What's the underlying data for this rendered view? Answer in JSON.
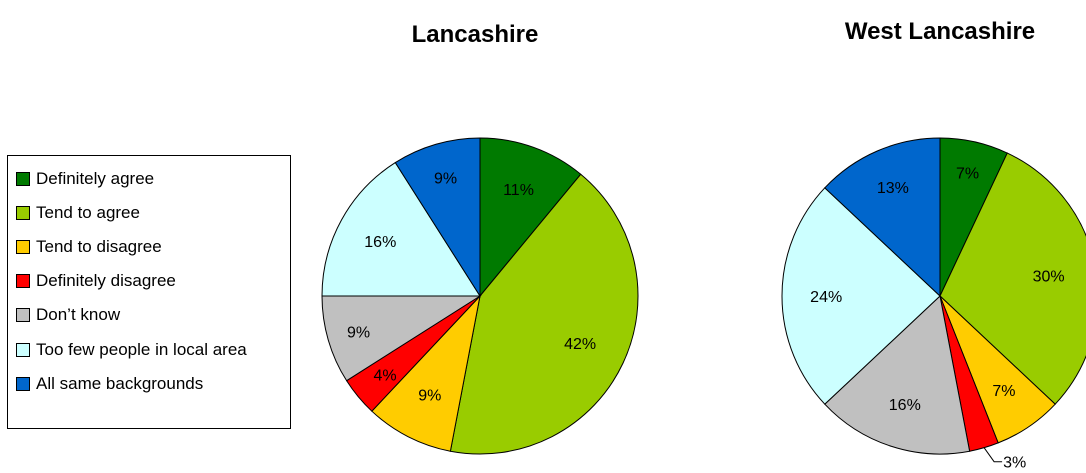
{
  "chart_data": [
    {
      "type": "pie",
      "title": "Lancashire",
      "categories": [
        "Definitely agree",
        "Tend to agree",
        "Tend to disagree",
        "Definitely disagree",
        "Don’t know",
        "Too few people in local area",
        "All same backgrounds"
      ],
      "values": [
        11,
        42,
        9,
        4,
        9,
        16,
        9
      ],
      "labels": [
        "11%",
        "42%",
        "9%",
        "4%",
        "9%",
        "16%",
        "9%"
      ]
    },
    {
      "type": "pie",
      "title": "West Lancashire",
      "categories": [
        "Definitely agree",
        "Tend to agree",
        "Tend to disagree",
        "Definitely disagree",
        "Don’t know",
        "Too few people in local area",
        "All same backgrounds"
      ],
      "values": [
        7,
        30,
        7,
        3,
        16,
        24,
        13
      ],
      "labels": [
        "7%",
        "30%",
        "7%",
        "3%",
        "16%",
        "24%",
        "13%"
      ]
    }
  ],
  "legend": {
    "items": [
      {
        "label": "Definitely agree",
        "color": "#007A00"
      },
      {
        "label": "Tend to agree",
        "color": "#99CC00"
      },
      {
        "label": "Tend to disagree",
        "color": "#FFCC00"
      },
      {
        "label": "Definitely disagree",
        "color": "#FF0000"
      },
      {
        "label": "Don’t know",
        "color": "#C0C0C0"
      },
      {
        "label": "Too few people in local area",
        "color": "#CCFFFF"
      },
      {
        "label": "All same backgrounds",
        "color": "#0066CC"
      }
    ]
  }
}
